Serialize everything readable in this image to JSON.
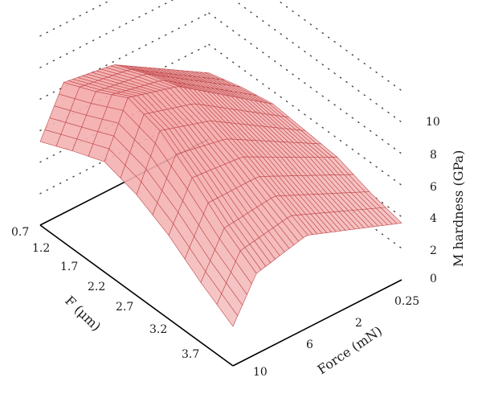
{
  "chart_data": {
    "type": "surface",
    "title": "",
    "zlabel": "M hardness (GPa)",
    "ylabel": "F (μm)",
    "xlabel": "Force (mN)",
    "x_ticks": [
      "0.25",
      "2",
      "6",
      "10"
    ],
    "y_ticks": [
      "0.7",
      "1.2",
      "1.7",
      "2.2",
      "2.7",
      "3.2",
      "3.7"
    ],
    "z_ticks": [
      "0",
      "2",
      "4",
      "6",
      "8",
      "10"
    ],
    "zlim": [
      0,
      10
    ],
    "grid": true,
    "surface_color": "#f4a6a6",
    "mesh_color": "#c0484b",
    "force_values": [
      0.25,
      2,
      6,
      10
    ],
    "depth_values": [
      0.7,
      1.2,
      1.7,
      2.2,
      2.7,
      3.2,
      3.7
    ],
    "hardness": [
      [
        4.2,
        7.8,
        8.3,
        5.3
      ],
      [
        4.8,
        8.7,
        9.2,
        6.2
      ],
      [
        5.2,
        9.4,
        10.3,
        7.0
      ],
      [
        5.0,
        8.7,
        9.7,
        6.4
      ],
      [
        4.8,
        7.9,
        8.2,
        5.3
      ],
      [
        4.1,
        6.9,
        6.5,
        3.8
      ],
      [
        3.6,
        5.9,
        5.1,
        2.5
      ]
    ]
  }
}
